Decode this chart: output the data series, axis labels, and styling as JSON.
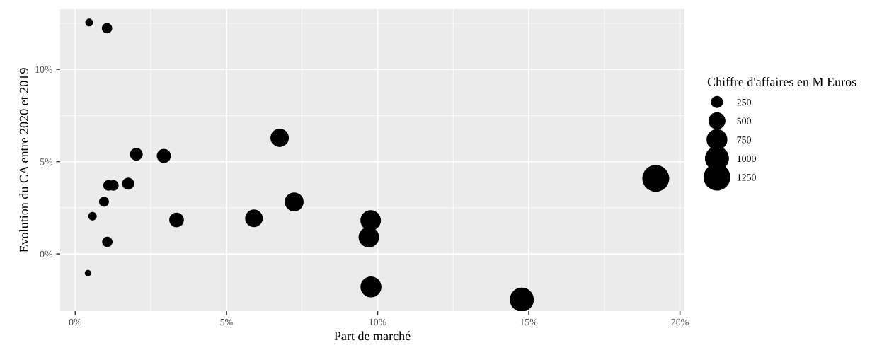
{
  "chart_data": {
    "type": "bubble",
    "xlabel": "Part de marché",
    "ylabel": "Evolution du CA entre 2020 et 2019",
    "legend_title": "Chiffre d'affaires en M Euros",
    "x": [
      0.46,
      1.05,
      2.02,
      2.93,
      1.1,
      1.26,
      1.75,
      0.95,
      0.57,
      3.35,
      1.06,
      0.42,
      6.76,
      7.24,
      5.91,
      9.77,
      9.71,
      9.78,
      14.77,
      19.2
    ],
    "values": [
      12.54,
      12.23,
      5.4,
      5.31,
      3.71,
      3.71,
      3.81,
      2.83,
      2.04,
      1.84,
      0.65,
      -1.04,
      6.29,
      2.82,
      1.93,
      1.81,
      0.9,
      -1.79,
      -2.48,
      4.09
    ],
    "sizes": [
      105,
      187,
      280,
      346,
      195,
      195,
      250,
      170,
      125,
      371,
      187,
      70,
      585,
      617,
      541,
      728,
      728,
      758,
      1001,
      1250
    ],
    "size_legend": [
      250,
      500,
      750,
      1000,
      1250
    ],
    "color": "#000000",
    "xlim": [
      -0.5,
      20.15
    ],
    "ylim": [
      -3.1,
      13.26
    ],
    "xticks": [
      {
        "value": 0,
        "label": "0%"
      },
      {
        "value": 5,
        "label": "5%"
      },
      {
        "value": 10,
        "label": "10%"
      },
      {
        "value": 15,
        "label": "15%"
      },
      {
        "value": 20,
        "label": "20%"
      }
    ],
    "yticks": [
      {
        "value": 0,
        "label": "0%"
      },
      {
        "value": 5,
        "label": "5%"
      },
      {
        "value": 10,
        "label": "10%"
      }
    ],
    "grid": true
  }
}
